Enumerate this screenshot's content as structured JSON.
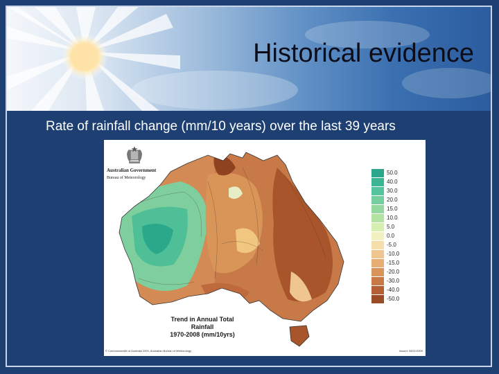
{
  "slide": {
    "title": "Historical evidence",
    "subtitle": "Rate of rainfall change (mm/10 years) over the last 39 years"
  },
  "map": {
    "org_name": "Australian Government",
    "org_unit": "Bureau of Meteorology",
    "caption_line1": "Trend in Annual Total Rainfall",
    "caption_line2": "1970-2008 (mm/10yrs)",
    "copyright": "© Commonwealth of Australia 2009, Australian Bureau of Meteorology",
    "issued": "Issued: 06/01/2009",
    "legend": [
      {
        "label": "50.0",
        "color": "#2aa889"
      },
      {
        "label": "40.0",
        "color": "#3bb593"
      },
      {
        "label": "30.0",
        "color": "#55c39c"
      },
      {
        "label": "20.0",
        "color": "#74cf9e"
      },
      {
        "label": "15.0",
        "color": "#93d99f"
      },
      {
        "label": "10.0",
        "color": "#b3e3a3"
      },
      {
        "label": "5.0",
        "color": "#d6eeb0"
      },
      {
        "label": "0.0",
        "color": "#f3f1c2"
      },
      {
        "label": "-5.0",
        "color": "#f5deaa"
      },
      {
        "label": "-10.0",
        "color": "#efc690"
      },
      {
        "label": "-15.0",
        "color": "#e6ad74"
      },
      {
        "label": "-20.0",
        "color": "#d9945c"
      },
      {
        "label": "-30.0",
        "color": "#c97947"
      },
      {
        "label": "-40.0",
        "color": "#b46035"
      },
      {
        "label": "-50.0",
        "color": "#9c4b27"
      }
    ]
  }
}
